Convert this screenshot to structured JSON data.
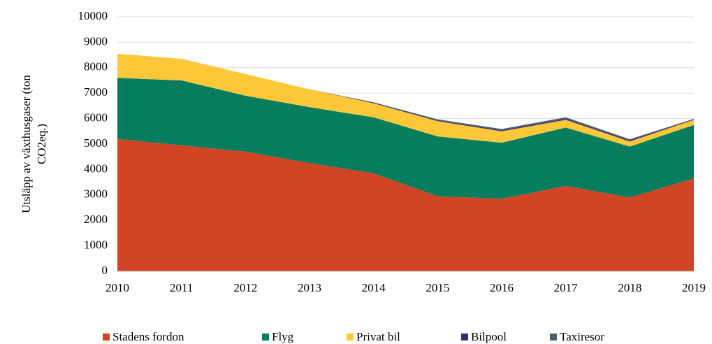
{
  "chart_data": {
    "type": "stacked_area",
    "y_label": [
      "Utsläpp av växthusgaser (ton",
      "CO2eq.)"
    ],
    "x": [
      2010,
      2011,
      2012,
      2013,
      2014,
      2015,
      2016,
      2017,
      2018,
      2019
    ],
    "xlim": [
      2010,
      2019
    ],
    "xticks": [
      2010,
      2011,
      2012,
      2013,
      2014,
      2015,
      2016,
      2017,
      2018,
      2019
    ],
    "ylim": [
      0,
      10000
    ],
    "yticks": [
      0,
      1000,
      2000,
      3000,
      4000,
      5000,
      6000,
      7000,
      8000,
      9000,
      10000
    ],
    "grid": true,
    "legend": "bottom",
    "series": [
      {
        "name": "Stadens fordon",
        "color": "#d14524",
        "values": [
          5200,
          4950,
          4700,
          4250,
          3850,
          2950,
          2850,
          3350,
          2900,
          3650
        ]
      },
      {
        "name": "Flyg",
        "color": "#077d5f",
        "values": [
          2400,
          2550,
          2200,
          2200,
          2200,
          2350,
          2200,
          2300,
          2000,
          2100
        ]
      },
      {
        "name": "Privat bil",
        "color": "#fcc83a",
        "values": [
          950,
          850,
          850,
          700,
          550,
          600,
          450,
          300,
          200,
          200
        ]
      },
      {
        "name": "Bilpool",
        "color": "#3b2c6e",
        "values": [
          0,
          0,
          0,
          0,
          20,
          30,
          40,
          40,
          40,
          20
        ]
      },
      {
        "name": "Taxiresor",
        "color": "#4c5f70",
        "values": [
          0,
          0,
          0,
          0,
          20,
          40,
          50,
          60,
          50,
          20
        ]
      }
    ]
  }
}
